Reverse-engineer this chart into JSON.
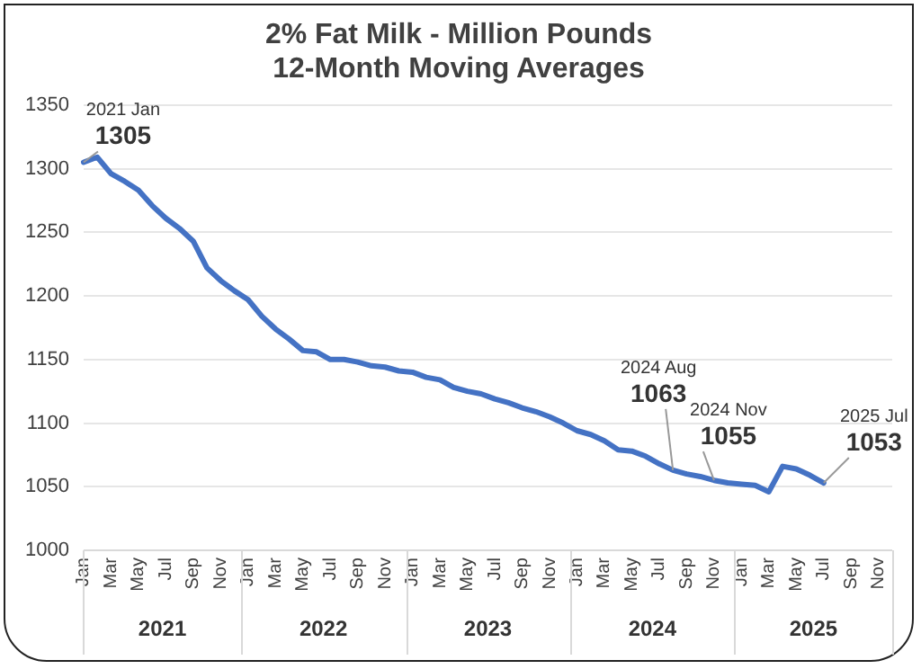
{
  "chart_data": {
    "type": "line",
    "title": "2% Fat Milk - Million Pounds",
    "subtitle": "12-Month Moving Averages",
    "categories": [
      "Jan",
      null,
      "Mar",
      null,
      "May",
      null,
      "Jul",
      null,
      "Sep",
      null,
      "Nov",
      null,
      "Jan",
      null,
      "Mar",
      null,
      "May",
      null,
      "Jul",
      null,
      "Sep",
      null,
      "Nov",
      null,
      "Jan",
      null,
      "Mar",
      null,
      "May",
      null,
      "Jul",
      null,
      "Sep",
      null,
      "Nov",
      null,
      "Jan",
      null,
      "Mar",
      null,
      "May",
      null,
      "Jul",
      null,
      "Sep",
      null,
      "Nov",
      null,
      "Jan",
      null,
      "Mar",
      null,
      "May",
      null,
      "Jul",
      null,
      "Sep",
      null,
      "Nov",
      null
    ],
    "series": [
      {
        "color": "#4472c4",
        "values": [
          1305,
          1309,
          1296,
          1290,
          1283,
          1271,
          1261,
          1253,
          1243,
          1222,
          1212,
          1204,
          1197,
          1184,
          1174,
          1166,
          1157,
          1156,
          1150,
          1150,
          1148,
          1145,
          1144,
          1141,
          1140,
          1136,
          1134,
          1128,
          1125,
          1123,
          1119,
          1116,
          1112,
          1109,
          1105,
          1100,
          1094,
          1091,
          1086,
          1079,
          1078,
          1074,
          1068,
          1063,
          1060,
          1058,
          1055,
          1053,
          1052,
          1051,
          1046,
          1066,
          1064,
          1059,
          1053,
          null,
          null,
          null,
          null,
          null
        ],
        "value_labels": [
          "2021 Jan\n1305",
          null,
          null,
          null,
          null,
          null,
          null,
          null,
          null,
          null,
          null,
          null,
          null,
          null,
          null,
          null,
          null,
          null,
          null,
          null,
          null,
          null,
          null,
          null,
          null,
          null,
          null,
          null,
          null,
          null,
          null,
          null,
          null,
          null,
          null,
          null,
          null,
          null,
          null,
          null,
          null,
          null,
          null,
          "2024 Aug\n1063",
          null,
          null,
          "2024 Nov\n1055",
          null,
          null,
          null,
          null,
          null,
          null,
          null,
          "2025 Jul\n1053",
          null,
          null,
          null,
          null,
          null
        ]
      }
    ],
    "annotations": [
      "2021",
      "2022",
      "2023",
      "2024",
      "2025"
    ],
    "ylim": [
      1000,
      1350
    ],
    "yticks": [
      1000,
      1050,
      1100,
      1150,
      1200,
      1250,
      1300,
      1350
    ],
    "grid": "y",
    "legend": false,
    "marker": "none",
    "line_style": "solid"
  }
}
